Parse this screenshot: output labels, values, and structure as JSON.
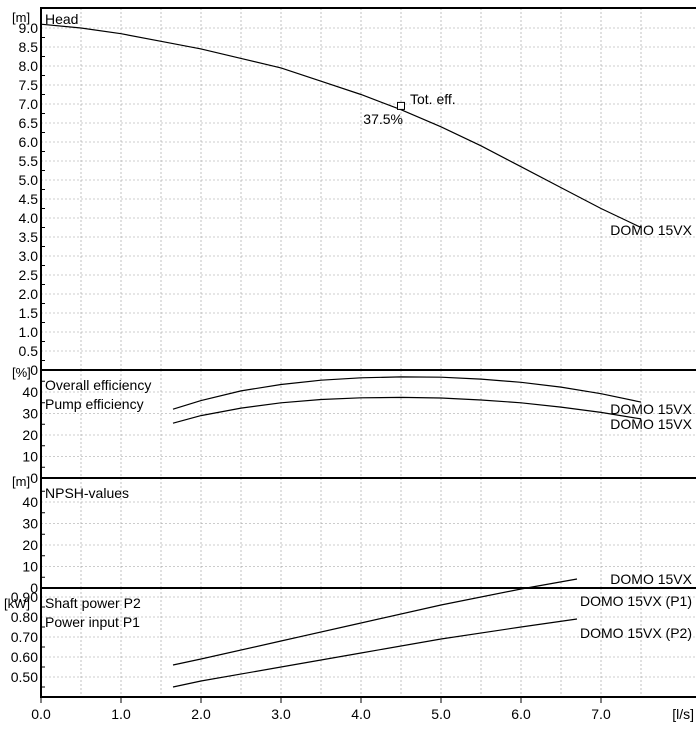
{
  "chart_data": [
    {
      "type": "line",
      "unit": "[m]",
      "title": "Head",
      "xlim": [
        0,
        8
      ],
      "ylim": [
        0,
        9.25
      ],
      "yticks": [
        "0.5",
        "1.0",
        "1.5",
        "2.0",
        "2.5",
        "3.0",
        "3.5",
        "4.0",
        "4.5",
        "5.0",
        "5.5",
        "6.0",
        "6.5",
        "7.0",
        "7.5",
        "8.0",
        "8.5",
        "9.0"
      ],
      "series": [
        {
          "name": "DOMO 15VX",
          "x": [
            0,
            0.5,
            1.0,
            1.5,
            2.0,
            2.5,
            3.0,
            3.5,
            4.0,
            4.5,
            5.0,
            5.5,
            6.0,
            6.5,
            7.0,
            7.5
          ],
          "y": [
            9.1,
            9.0,
            8.85,
            8.65,
            8.45,
            8.2,
            7.95,
            7.6,
            7.25,
            6.85,
            6.4,
            5.9,
            5.35,
            4.8,
            4.25,
            3.75
          ]
        }
      ],
      "annotation": {
        "x": 4.5,
        "y": 6.95,
        "label": "Tot. eff.",
        "value": "37.5%"
      }
    },
    {
      "type": "line",
      "unit": "[%]",
      "legend": [
        "Overall efficiency",
        "Pump efficiency"
      ],
      "xlim": [
        0,
        8
      ],
      "ylim": [
        0,
        50
      ],
      "yticks": [
        "10",
        "20",
        "30",
        "40"
      ],
      "series": [
        {
          "name": "DOMO 15VX",
          "x": [
            1.65,
            2.0,
            2.5,
            3.0,
            3.5,
            4.0,
            4.5,
            5.0,
            5.5,
            6.0,
            6.5,
            7.0,
            7.5
          ],
          "y": [
            32,
            36,
            40.5,
            43.5,
            45.5,
            46.6,
            47,
            46.9,
            46,
            44.5,
            42.3,
            39.2,
            35.3
          ]
        },
        {
          "name": "DOMO 15VX",
          "x": [
            1.65,
            2.0,
            2.5,
            3.0,
            3.5,
            4.0,
            4.5,
            5.0,
            5.5,
            6.0,
            6.5,
            7.0,
            7.5
          ],
          "y": [
            25.5,
            29,
            32.5,
            35,
            36.5,
            37.3,
            37.5,
            37.2,
            36.3,
            35,
            33,
            30.5,
            27.5
          ]
        }
      ]
    },
    {
      "type": "line",
      "unit": "[m]",
      "title": "NPSH-values",
      "xlim": [
        0,
        8
      ],
      "ylim": [
        0,
        50
      ],
      "yticks": [
        "10",
        "20",
        "30",
        "40"
      ],
      "series": [
        {
          "name": "DOMO 15VX",
          "x": [],
          "y": []
        }
      ]
    },
    {
      "type": "line",
      "unit": "[kW]",
      "legend": [
        "Shaft power P2",
        "Power input P1"
      ],
      "xlim": [
        0,
        8
      ],
      "ylim": [
        0.4,
        1.0
      ],
      "yticks": [
        "0.50",
        "0.60",
        "0.70",
        "0.80",
        "0.90"
      ],
      "series": [
        {
          "name": "DOMO 15VX (P1)",
          "x": [
            1.65,
            2.0,
            3.0,
            4.0,
            5.0,
            6.0,
            6.7
          ],
          "y": [
            0.56,
            0.59,
            0.68,
            0.77,
            0.86,
            0.94,
            0.99
          ]
        },
        {
          "name": "DOMO 15VX (P2)",
          "x": [
            1.65,
            2.0,
            3.0,
            4.0,
            5.0,
            6.0,
            6.7
          ],
          "y": [
            0.45,
            0.48,
            0.55,
            0.62,
            0.69,
            0.75,
            0.79
          ]
        }
      ]
    }
  ],
  "x_axis": {
    "ticks": [
      "0.0",
      "1.0",
      "2.0",
      "3.0",
      "4.0",
      "5.0",
      "6.0",
      "7.0"
    ],
    "unit": "[l/s]"
  }
}
